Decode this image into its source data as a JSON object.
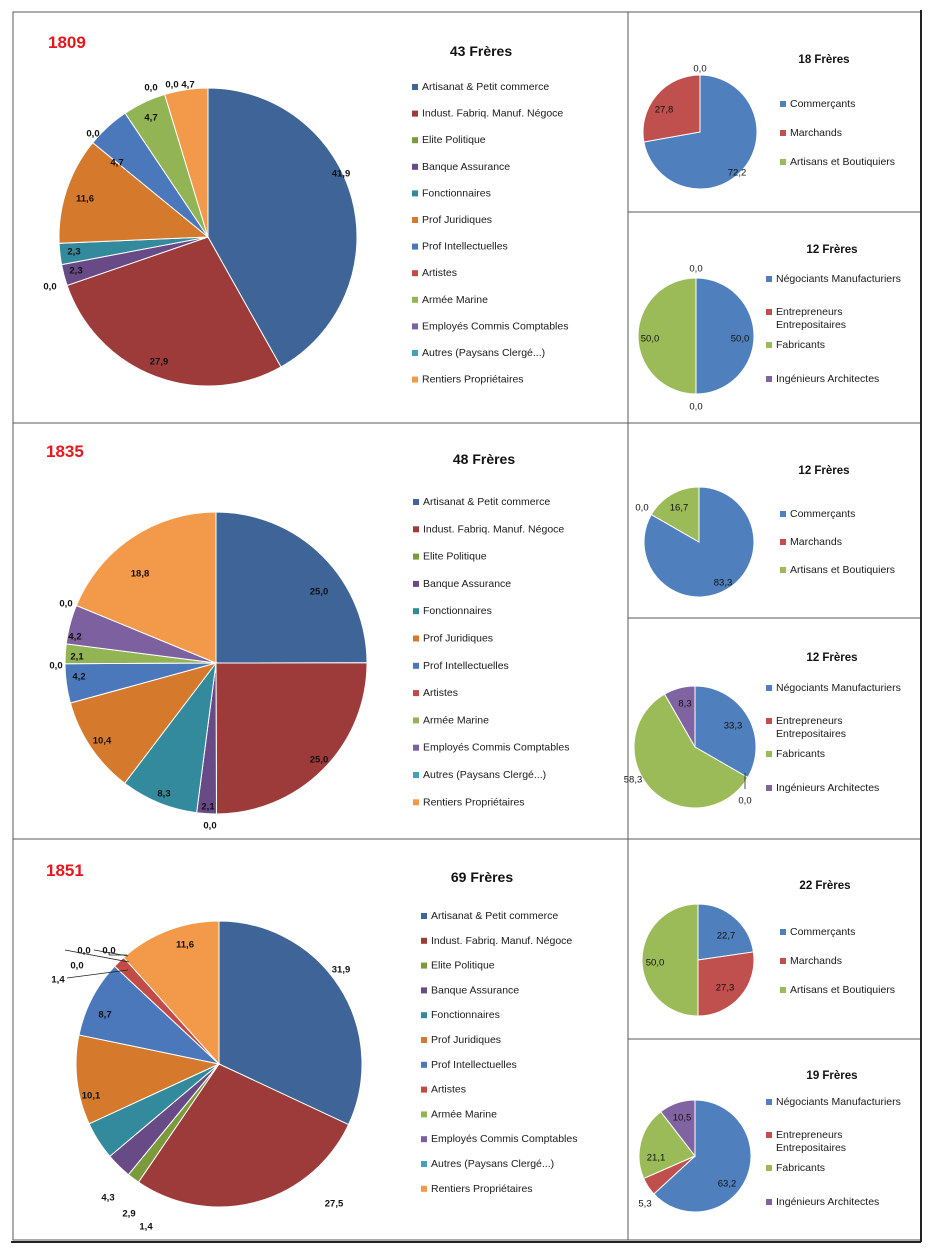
{
  "colors": {
    "big": [
      "#3e6498",
      "#9c3b3a",
      "#7a9a3c",
      "#684a86",
      "#338a9c",
      "#d57a2c",
      "#4a78bb",
      "#c24b48",
      "#93b454",
      "#7c60a0",
      "#45a0bb",
      "#f3994a"
    ],
    "comm": [
      "#4f80bd",
      "#c0504d",
      "#9bbb59"
    ],
    "neg": [
      "#4f80bd",
      "#c0504d",
      "#9bbb59",
      "#8064a2"
    ]
  },
  "chart_data": [
    {
      "type": "pie",
      "year": "1809",
      "title": "43 Frères",
      "categories": [
        "Artisanat & Petit commerce",
        "Indust. Fabriq. Manuf. Négoce",
        "Elite Politique",
        "Banque Assurance",
        "Fonctionnaires",
        "Prof Juridiques",
        "Prof Intellectuelles",
        "Artistes",
        "Armée Marine",
        "Employés Commis Comptables",
        "Autres (Paysans Clergé...)",
        "Rentiers Propriétaires"
      ],
      "values": [
        41.9,
        27.9,
        0.0,
        2.3,
        2.3,
        11.6,
        4.7,
        0.0,
        4.7,
        0.0,
        0.0,
        4.7
      ],
      "labels": [
        "41,9",
        "27,9",
        "0,0",
        "2,3",
        "2,3",
        "11,6",
        "4,7",
        "0,0",
        "4,7",
        "0,0",
        "0,0",
        "4,7"
      ]
    },
    {
      "type": "pie",
      "title": "18 Frères",
      "categories": [
        "Commerçants",
        "Marchands",
        "Artisans et Boutiquiers"
      ],
      "values": [
        72.2,
        27.8,
        0.0
      ],
      "labels": [
        "72,2",
        "27,8",
        "0,0"
      ]
    },
    {
      "type": "pie",
      "title": "12 Frères",
      "categories": [
        "Négociants Manufacturiers",
        "Entrepreneurs Entrepositaires",
        "Fabricants",
        "Ingénieurs Architectes"
      ],
      "values": [
        50.0,
        0.0,
        50.0,
        0.0
      ],
      "labels": [
        "50,0",
        "0,0",
        "50,0",
        "0,0"
      ]
    },
    {
      "type": "pie",
      "year": "1835",
      "title": "48 Frères",
      "categories": [
        "Artisanat & Petit commerce",
        "Indust. Fabriq. Manuf. Négoce",
        "Elite Politique",
        "Banque Assurance",
        "Fonctionnaires",
        "Prof Juridiques",
        "Prof Intellectuelles",
        "Artistes",
        "Armée Marine",
        "Employés Commis Comptables",
        "Autres (Paysans Clergé...)",
        "Rentiers Propriétaires"
      ],
      "values": [
        25.0,
        25.0,
        0.0,
        2.1,
        8.3,
        10.4,
        4.2,
        0.0,
        2.1,
        4.2,
        0.0,
        18.8
      ],
      "labels": [
        "25,0",
        "25,0",
        "0,0",
        "2,1",
        "8,3",
        "10,4",
        "4,2",
        "0,0",
        "2,1",
        "4,2",
        "0,0",
        "18,8"
      ]
    },
    {
      "type": "pie",
      "title": "12 Frères",
      "categories": [
        "Commerçants",
        "Marchands",
        "Artisans et Boutiquiers"
      ],
      "values": [
        83.3,
        0.0,
        16.7
      ],
      "labels": [
        "83,3",
        "0,0",
        "16,7"
      ]
    },
    {
      "type": "pie",
      "title": "12 Frères",
      "categories": [
        "Négociants Manufacturiers",
        "Entrepreneurs Entrepositaires",
        "Fabricants",
        "Ingénieurs Architectes"
      ],
      "values": [
        33.3,
        0.0,
        58.3,
        8.3
      ],
      "labels": [
        "33,3",
        "0,0",
        "58,3",
        "8,3"
      ]
    },
    {
      "type": "pie",
      "year": "1851",
      "title": "69 Frères",
      "categories": [
        "Artisanat & Petit commerce",
        "Indust. Fabriq. Manuf. Négoce",
        "Elite Politique",
        "Banque Assurance",
        "Fonctionnaires",
        "Prof Juridiques",
        "Prof Intellectuelles",
        "Artistes",
        "Armée Marine",
        "Employés Commis Comptables",
        "Autres (Paysans Clergé...)",
        "Rentiers Propriétaires"
      ],
      "values": [
        31.9,
        27.5,
        1.4,
        2.9,
        4.3,
        10.1,
        8.7,
        1.4,
        0.0,
        0.0,
        0.0,
        11.6
      ],
      "labels": [
        "31,9",
        "27,5",
        "1,4",
        "2,9",
        "4,3",
        "10,1",
        "8,7",
        "1,4",
        "0,0",
        "0,0",
        "0,0",
        "11,6"
      ]
    },
    {
      "type": "pie",
      "title": "22 Frères",
      "categories": [
        "Commerçants",
        "Marchands",
        "Artisans et Boutiquiers"
      ],
      "values": [
        22.7,
        27.3,
        50.0
      ],
      "labels": [
        "22,7",
        "27,3",
        "50,0"
      ]
    },
    {
      "type": "pie",
      "title": "19 Frères",
      "categories": [
        "Négociants Manufacturiers",
        "Entrepreneurs Entrepositaires",
        "Fabricants",
        "Ingénieurs Architectes"
      ],
      "values": [
        63.2,
        5.3,
        21.1,
        10.5
      ],
      "labels": [
        "63,2",
        "5,3",
        "21,1",
        "10,5"
      ]
    }
  ]
}
